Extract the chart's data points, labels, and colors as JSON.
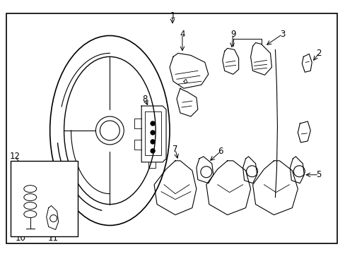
{
  "fig_width": 4.89,
  "fig_height": 3.6,
  "dpi": 100,
  "bg_color": "#ffffff",
  "line_color": "#000000"
}
